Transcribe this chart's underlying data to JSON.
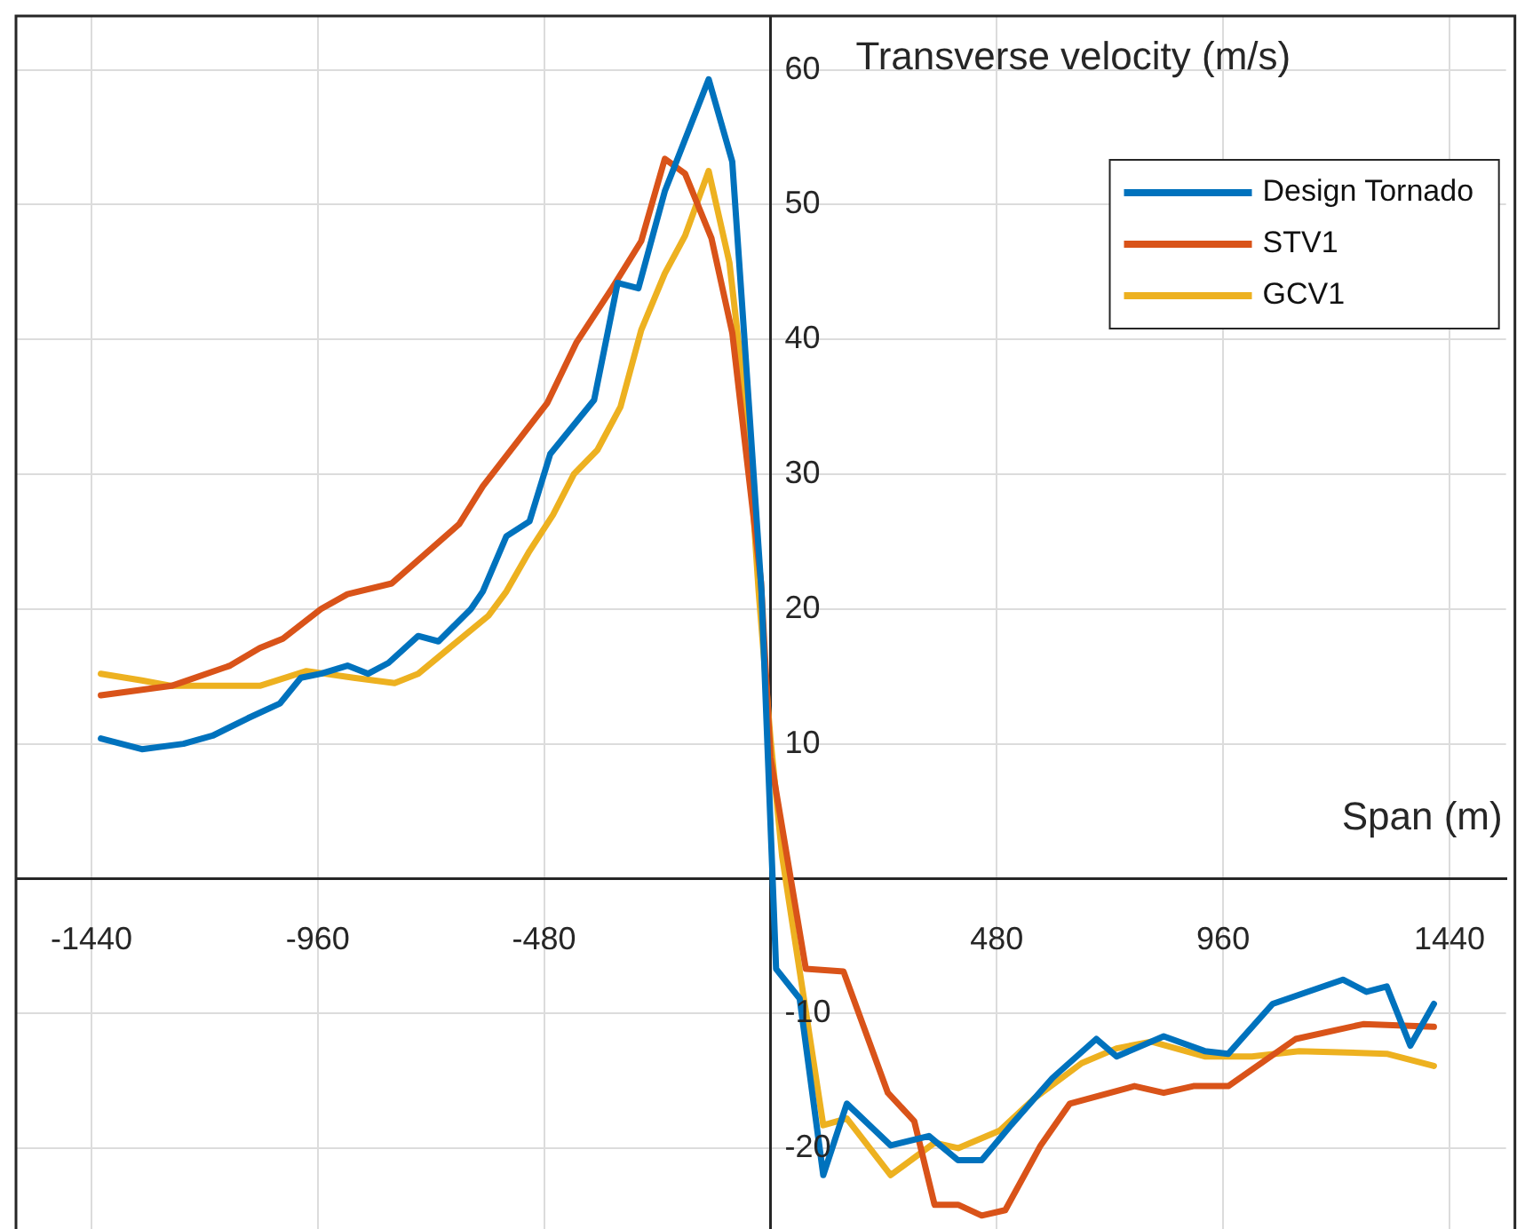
{
  "chart_data": {
    "type": "line",
    "xlabel": "Span (m)",
    "ylabel": "Transverse velocity (m/s)",
    "xlim": [
      -1600,
      1560
    ],
    "ylim": [
      -26,
      64
    ],
    "xticks": [
      -1440,
      -960,
      -480,
      {
        "value": 0,
        "label": null
      },
      480,
      960,
      1440
    ],
    "yticks": [
      -20,
      -10,
      {
        "value": 0,
        "label": null
      },
      10,
      20,
      30,
      40,
      50,
      60
    ],
    "grid": true,
    "legend": "top right",
    "marker": "none",
    "series": [
      {
        "name": "Design Tornado",
        "color": "#0072bd",
        "x": [
          -1420,
          -1333,
          -1245,
          -1183,
          -1108,
          -1040,
          -996,
          -953,
          -897,
          -853,
          -810,
          -747,
          -704,
          -635,
          -610,
          -560,
          -511,
          -467,
          -374,
          -324,
          -280,
          -224,
          -131,
          -81,
          -56,
          -19,
          12,
          62,
          112,
          162,
          255,
          336,
          398,
          448,
          510,
          598,
          691,
          734,
          834,
          921,
          971,
          1065,
          1214,
          1264,
          1307,
          1357,
          1407
        ],
        "values": [
          10.4,
          9.6,
          10.0,
          10.6,
          11.9,
          13.0,
          14.9,
          15.2,
          15.8,
          15.2,
          16.0,
          18.0,
          17.6,
          20.0,
          21.3,
          25.4,
          26.5,
          31.5,
          35.5,
          44.2,
          43.8,
          51.0,
          59.3,
          53.2,
          40.5,
          21.3,
          -6.7,
          -8.9,
          -22.0,
          -16.7,
          -19.8,
          -19.1,
          -20.9,
          -20.9,
          -18.3,
          -14.8,
          -11.9,
          -13.2,
          -11.7,
          -12.8,
          -13.0,
          -9.3,
          -7.5,
          -8.4,
          -8.0,
          -12.4,
          -9.3
        ]
      },
      {
        "name": "STV1",
        "color": "#d95319",
        "x": [
          -1420,
          -1270,
          -1146,
          -1083,
          -1034,
          -953,
          -897,
          -803,
          -660,
          -610,
          -473,
          -411,
          -336,
          -274,
          -224,
          -181,
          -125,
          -81,
          -20,
          0,
          75,
          155,
          249,
          305,
          348,
          398,
          448,
          498,
          573,
          635,
          772,
          834,
          897,
          971,
          1114,
          1257,
          1407
        ],
        "values": [
          13.6,
          14.3,
          15.8,
          17.1,
          17.8,
          20.0,
          21.1,
          21.9,
          26.3,
          29.1,
          35.3,
          39.8,
          43.8,
          47.3,
          53.4,
          52.3,
          47.5,
          40.5,
          22,
          9,
          -6.7,
          -6.9,
          -15.9,
          -18.0,
          -24.2,
          -24.2,
          -25.0,
          -24.6,
          -19.8,
          -16.7,
          -15.4,
          -15.9,
          -15.4,
          -15.4,
          -11.9,
          -10.8,
          -11.0
        ]
      },
      {
        "name": "GCV1",
        "color": "#edb120",
        "x": [
          -1420,
          -1333,
          -1270,
          -1083,
          -984,
          -884,
          -797,
          -747,
          -598,
          -560,
          -511,
          -461,
          -417,
          -367,
          -318,
          -274,
          -224,
          -181,
          -131,
          -87,
          -50,
          -25,
          0,
          25,
          112,
          162,
          255,
          348,
          398,
          486,
          560,
          660,
          734,
          809,
          921,
          1021,
          1121,
          1307,
          1407
        ],
        "values": [
          15.2,
          14.7,
          14.3,
          14.3,
          15.4,
          14.9,
          14.5,
          15.2,
          19.5,
          21.3,
          24.3,
          27.0,
          30.0,
          31.8,
          35.0,
          40.7,
          44.9,
          47.7,
          52.5,
          45.7,
          34.4,
          21.3,
          10.4,
          1.6,
          -18.3,
          -17.8,
          -22.0,
          -19.6,
          -20.0,
          -18.7,
          -16.3,
          -13.7,
          -12.6,
          -12.1,
          -13.2,
          -13.2,
          -12.8,
          -13.0,
          -13.9
        ]
      }
    ]
  }
}
